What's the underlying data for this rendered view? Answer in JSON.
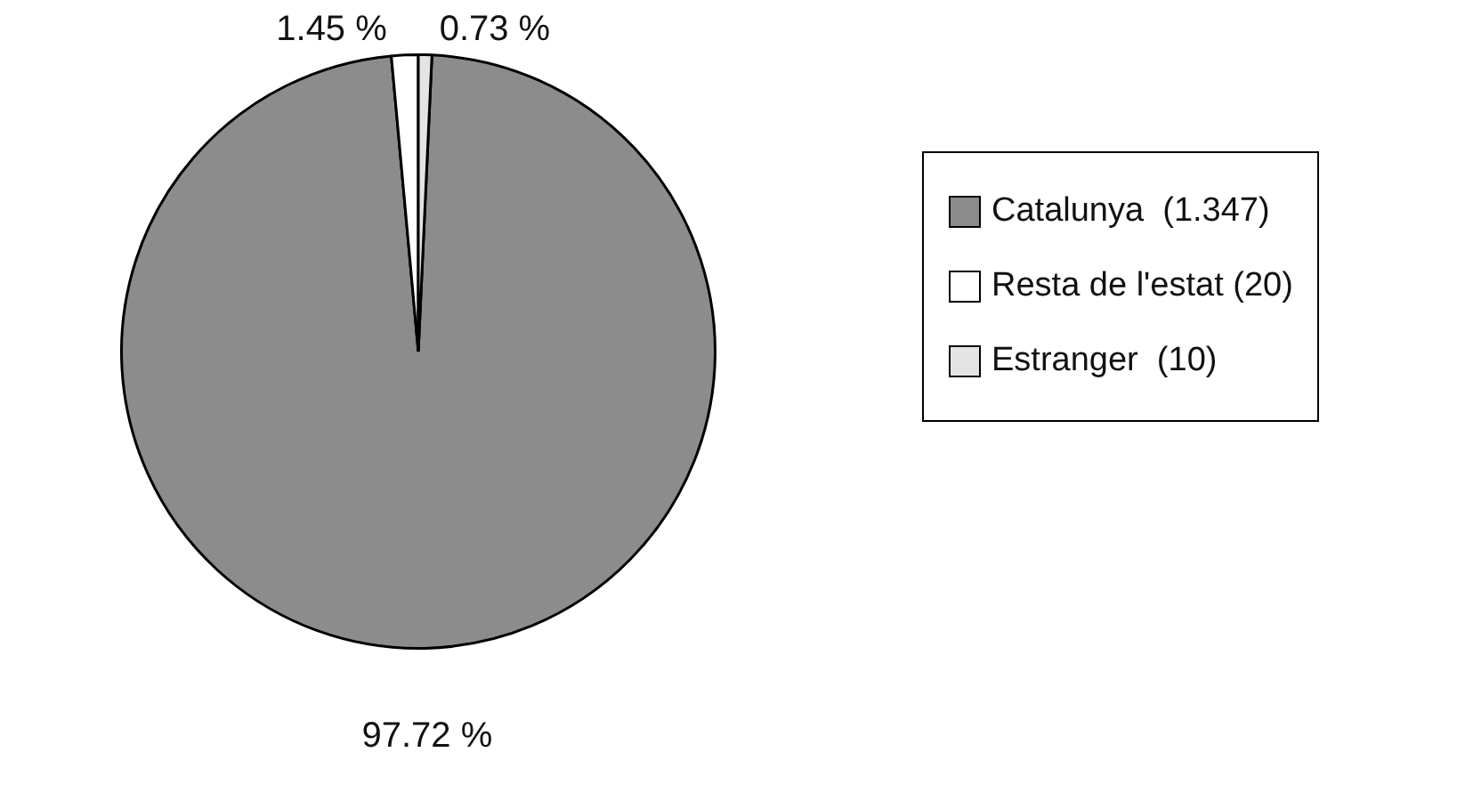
{
  "chart_data": {
    "type": "pie",
    "categories": [
      "Catalunya  (1.347)",
      "Resta de l'estat (20)",
      "Estranger  (10)"
    ],
    "values": [
      97.72,
      1.45,
      0.73
    ],
    "colors": [
      "#8c8c8c",
      "#ffffff",
      "#e4e4e4"
    ],
    "value_labels": [
      "97.72 %",
      "1.45 %",
      "0.73 %"
    ],
    "legend": "right"
  }
}
